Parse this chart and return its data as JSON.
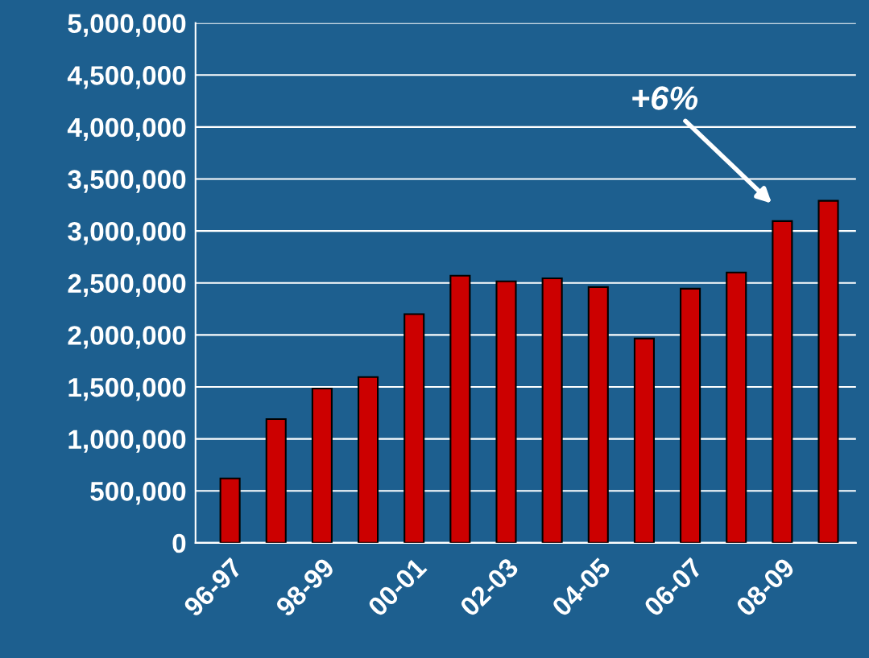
{
  "chart_data": {
    "type": "bar",
    "categories": [
      "96-97",
      null,
      "98-99",
      null,
      "00-01",
      null,
      "02-03",
      null,
      "04-05",
      null,
      "06-07",
      null,
      "08-09",
      null
    ],
    "values": [
      620000,
      1190000,
      1485000,
      1595000,
      2200000,
      2570000,
      2515000,
      2545000,
      2460000,
      1965000,
      2445000,
      2600000,
      3095000,
      3290000
    ],
    "color": "#cc0000",
    "ylim": [
      0,
      5000000
    ],
    "yticks": [
      {
        "value": 0,
        "label": "0"
      },
      {
        "value": 500000,
        "label": "500,000"
      },
      {
        "value": 1000000,
        "label": "1,000,000"
      },
      {
        "value": 1500000,
        "label": "1,500,000"
      },
      {
        "value": 2000000,
        "label": "2,000,000"
      },
      {
        "value": 2500000,
        "label": "2,500,000"
      },
      {
        "value": 3000000,
        "label": "3,000,000"
      },
      {
        "value": 3500000,
        "label": "3,500,000"
      },
      {
        "value": 4000000,
        "label": "4,000,000"
      },
      {
        "value": 4500000,
        "label": "4,500,000"
      },
      {
        "value": 5000000,
        "label": "5,000,000"
      }
    ],
    "grid": "y",
    "annotations": [
      "+6%"
    ]
  }
}
